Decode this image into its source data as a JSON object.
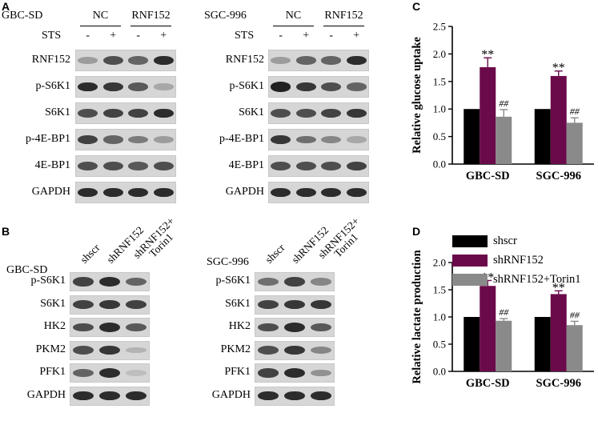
{
  "panels": {
    "A": {
      "letter": "A",
      "left": {
        "cell": "GBC-SD",
        "groups": [
          "NC",
          "RNF152"
        ],
        "sts_label": "STS",
        "sts_marks": [
          "-",
          "+",
          "-",
          "+"
        ],
        "rows": [
          {
            "label": "RNF152",
            "intensity": [
              0.35,
              0.7,
              0.6,
              0.85
            ]
          },
          {
            "label": "p-S6K1",
            "intensity": [
              0.85,
              0.8,
              0.65,
              0.3
            ]
          },
          {
            "label": "S6K1",
            "intensity": [
              0.7,
              0.75,
              0.75,
              0.85
            ]
          },
          {
            "label": "p-4E-BP1",
            "intensity": [
              0.75,
              0.6,
              0.5,
              0.35
            ]
          },
          {
            "label": "4E-BP1",
            "intensity": [
              0.7,
              0.7,
              0.65,
              0.7
            ]
          },
          {
            "label": "GAPDH",
            "intensity": [
              0.85,
              0.85,
              0.85,
              0.85
            ]
          }
        ]
      },
      "right": {
        "cell": "SGC-996",
        "groups": [
          "NC",
          "RNF152"
        ],
        "sts_label": "STS",
        "sts_marks": [
          "-",
          "+",
          "-",
          "+"
        ],
        "rows": [
          {
            "label": "RNF152",
            "intensity": [
              0.35,
              0.6,
              0.6,
              0.85
            ]
          },
          {
            "label": "p-S6K1",
            "intensity": [
              0.9,
              0.8,
              0.7,
              0.6
            ]
          },
          {
            "label": "S6K1",
            "intensity": [
              0.7,
              0.7,
              0.75,
              0.8
            ]
          },
          {
            "label": "p-4E-BP1",
            "intensity": [
              0.8,
              0.55,
              0.45,
              0.3
            ]
          },
          {
            "label": "4E-BP1",
            "intensity": [
              0.7,
              0.7,
              0.7,
              0.75
            ]
          },
          {
            "label": "GAPDH",
            "intensity": [
              0.85,
              0.85,
              0.85,
              0.85
            ]
          }
        ]
      }
    },
    "B": {
      "letter": "B",
      "lanes": [
        "shscr",
        "shRNF152",
        "shRNF152+\nTorin1"
      ],
      "left": {
        "cell": "GBC-SD",
        "rows": [
          {
            "label": "p-S6K1",
            "intensity": [
              0.75,
              0.85,
              0.6
            ]
          },
          {
            "label": "S6K1",
            "intensity": [
              0.75,
              0.8,
              0.75
            ]
          },
          {
            "label": "HK2",
            "intensity": [
              0.7,
              0.85,
              0.65
            ]
          },
          {
            "label": "PKM2",
            "intensity": [
              0.7,
              0.8,
              0.25
            ]
          },
          {
            "label": "PFK1",
            "intensity": [
              0.6,
              0.85,
              0.2
            ]
          },
          {
            "label": "GAPDH",
            "intensity": [
              0.85,
              0.85,
              0.85
            ]
          }
        ]
      },
      "right": {
        "cell": "SGC-996",
        "rows": [
          {
            "label": "p-S6K1",
            "intensity": [
              0.55,
              0.75,
              0.45
            ]
          },
          {
            "label": "S6K1",
            "intensity": [
              0.75,
              0.8,
              0.8
            ]
          },
          {
            "label": "HK2",
            "intensity": [
              0.7,
              0.85,
              0.65
            ]
          },
          {
            "label": "PKM2",
            "intensity": [
              0.7,
              0.8,
              0.45
            ]
          },
          {
            "label": "PFK1",
            "intensity": [
              0.75,
              0.85,
              0.4
            ]
          },
          {
            "label": "GAPDH",
            "intensity": [
              0.85,
              0.85,
              0.85
            ]
          }
        ]
      }
    },
    "C": {
      "letter": "C"
    },
    "D": {
      "letter": "D"
    }
  },
  "legend": [
    "shscr",
    "shRNF152",
    "shRNF152+Torin1"
  ],
  "colors": {
    "shscr": "#000000",
    "shRNF152": "#6b0a4a",
    "shRNF152+Torin1": "#8a8a8a"
  },
  "chart_data": [
    {
      "panel": "C",
      "type": "bar",
      "ylabel": "Relative glucose uptake",
      "categories": [
        "GBC-SD",
        "SGC-996"
      ],
      "ylim": [
        0,
        2.5
      ],
      "yticks": [
        "0.0",
        "0.5",
        "1.0",
        "1.5",
        "2.0",
        "2.5"
      ],
      "series": [
        {
          "name": "shscr",
          "values": [
            1.0,
            1.0
          ],
          "errors": [
            0,
            0
          ],
          "marks": [
            "",
            ""
          ]
        },
        {
          "name": "shRNF152",
          "values": [
            1.76,
            1.6
          ],
          "errors": [
            0.17,
            0.09
          ],
          "marks": [
            "**",
            "**"
          ]
        },
        {
          "name": "shRNF152+Torin1",
          "values": [
            0.86,
            0.75
          ],
          "errors": [
            0.13,
            0.09
          ],
          "marks": [
            "##",
            "##"
          ]
        }
      ]
    },
    {
      "panel": "D",
      "type": "bar",
      "ylabel": "Relative lactate production",
      "categories": [
        "GBC-SD",
        "SGC-996"
      ],
      "ylim": [
        0,
        2.0
      ],
      "yticks": [
        "0.0",
        "0.5",
        "1.0",
        "1.5",
        "2.0"
      ],
      "series": [
        {
          "name": "shscr",
          "values": [
            1.0,
            1.0
          ],
          "errors": [
            0,
            0
          ],
          "marks": [
            "",
            ""
          ]
        },
        {
          "name": "shRNF152",
          "values": [
            1.57,
            1.42
          ],
          "errors": [
            0.1,
            0.06
          ],
          "marks": [
            "**",
            "**"
          ]
        },
        {
          "name": "shRNF152+Torin1",
          "values": [
            0.93,
            0.85
          ],
          "errors": [
            0.04,
            0.07
          ],
          "marks": [
            "##",
            "##"
          ]
        }
      ]
    }
  ]
}
